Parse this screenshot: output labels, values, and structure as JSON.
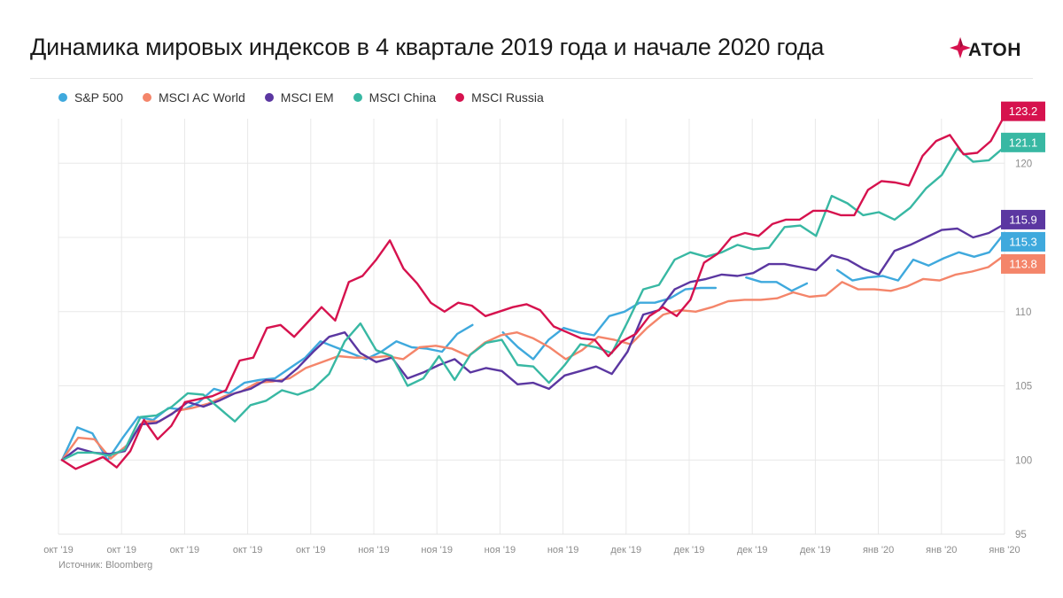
{
  "header": {
    "title": "Динамика мировых индексов в 4 квартале 2019 года и начале 2020 года",
    "logo_text": "АТОН"
  },
  "footer": {
    "source": "Источник: Bloomberg"
  },
  "colors": {
    "sp500": "#3fa9dd",
    "acwi": "#f4856a",
    "em": "#5b37a1",
    "china": "#38b8a3",
    "russia": "#d6124e",
    "logo_red": "#d6124e"
  },
  "chart_data": {
    "type": "line",
    "title": "Динамика мировых индексов в 4 квартале 2019 года и начале 2020 года",
    "xlabel": "",
    "ylabel": "",
    "ylim": [
      95,
      123
    ],
    "yticks": [
      95,
      100,
      105,
      110,
      115,
      120
    ],
    "grid": true,
    "legend_position": "top-left",
    "x_tick_labels": [
      "окт '19",
      "окт '19",
      "окт '19",
      "окт '19",
      "окт '19",
      "ноя '19",
      "ноя '19",
      "ноя '19",
      "ноя '19",
      "дек '19",
      "дек '19",
      "дек '19",
      "дек '19",
      "янв '20",
      "янв '20",
      "янв '20"
    ],
    "series": [
      {
        "name": "S&P 500",
        "color_key": "sp500",
        "end_label": "115.3",
        "values": [
          100.0,
          102.2,
          101.8,
          100.0,
          101.5,
          102.9,
          102.7,
          103.5,
          103.4,
          103.9,
          104.8,
          104.5,
          105.2,
          105.4,
          105.5,
          106.2,
          106.9,
          108.0,
          107.6,
          107.2,
          106.8,
          107.3,
          108.0,
          107.6,
          107.5,
          107.3,
          108.5,
          109.1,
          null,
          108.6,
          107.6,
          106.8,
          108.1,
          108.9,
          108.6,
          108.4,
          109.7,
          110.0,
          110.6,
          110.6,
          110.9,
          111.5,
          111.6,
          111.6,
          null,
          112.3,
          112.0,
          112.0,
          111.4,
          111.9,
          null,
          112.8,
          112.1,
          112.3,
          112.4,
          112.1,
          113.5,
          113.1,
          113.6,
          114.0,
          113.7,
          114.0,
          115.3
        ]
      },
      {
        "name": "MSCI AC World",
        "color_key": "acwi",
        "end_label": "113.8",
        "values": [
          100.0,
          101.5,
          101.4,
          100.1,
          101.0,
          102.6,
          102.6,
          103.3,
          103.5,
          103.8,
          104.3,
          104.6,
          105.2,
          105.3,
          105.5,
          106.2,
          106.6,
          107.0,
          106.9,
          106.9,
          107.0,
          106.8,
          107.6,
          107.7,
          107.5,
          107.0,
          107.9,
          108.4,
          108.6,
          108.2,
          107.6,
          106.8,
          107.4,
          108.3,
          108.1,
          107.8,
          108.9,
          109.8,
          110.1,
          110.0,
          110.3,
          110.7,
          110.8,
          110.8,
          110.9,
          111.3,
          111.0,
          111.1,
          112.0,
          111.5,
          111.5,
          111.4,
          111.7,
          112.2,
          112.1,
          112.5,
          112.7,
          113.0,
          113.8
        ]
      },
      {
        "name": "MSCI EM",
        "color_key": "em",
        "end_label": "115.9",
        "values": [
          100.0,
          100.8,
          100.5,
          100.4,
          100.6,
          102.4,
          102.5,
          103.1,
          103.9,
          103.6,
          104.0,
          104.5,
          104.8,
          105.4,
          105.3,
          106.2,
          107.3,
          108.3,
          108.6,
          107.2,
          106.6,
          106.9,
          105.5,
          105.9,
          106.4,
          106.8,
          105.9,
          106.2,
          106.0,
          105.1,
          105.2,
          104.8,
          105.7,
          106.0,
          106.3,
          105.8,
          107.3,
          109.8,
          110.1,
          111.5,
          112.0,
          112.2,
          112.5,
          112.4,
          112.6,
          113.2,
          113.2,
          113.0,
          112.8,
          113.8,
          113.5,
          112.9,
          112.5,
          114.1,
          114.5,
          115.0,
          115.5,
          115.6,
          115.0,
          115.3,
          115.9
        ]
      },
      {
        "name": "MSCI China",
        "color_key": "china",
        "end_label": "121.1",
        "values": [
          100.0,
          100.5,
          100.5,
          100.3,
          100.7,
          102.9,
          103.0,
          103.6,
          104.5,
          104.4,
          103.5,
          102.6,
          103.7,
          104.0,
          104.7,
          104.4,
          104.8,
          105.8,
          108.0,
          109.2,
          107.4,
          107.0,
          105.0,
          105.5,
          107.0,
          105.4,
          107.1,
          107.9,
          108.1,
          106.4,
          106.3,
          105.2,
          106.4,
          107.8,
          107.6,
          107.2,
          109.3,
          111.5,
          111.8,
          113.5,
          114.0,
          113.7,
          114.0,
          114.5,
          114.2,
          114.3,
          115.7,
          115.8,
          115.1,
          117.8,
          117.3,
          116.5,
          116.7,
          116.2,
          117.0,
          118.3,
          119.2,
          121.0,
          120.1,
          120.2,
          121.1
        ]
      },
      {
        "name": "MSCI Russia",
        "color_key": "russia",
        "end_label": "123.2",
        "values": [
          100.0,
          99.4,
          99.8,
          100.2,
          99.5,
          100.6,
          102.7,
          101.4,
          102.3,
          103.9,
          104.1,
          104.3,
          104.7,
          106.7,
          106.9,
          108.9,
          109.1,
          108.3,
          109.3,
          110.3,
          109.4,
          112.0,
          112.4,
          113.5,
          114.8,
          112.9,
          111.9,
          110.6,
          110.0,
          110.6,
          110.4,
          109.7,
          110.0,
          110.3,
          110.5,
          110.1,
          109.0,
          108.6,
          108.2,
          108.1,
          107.0,
          108.0,
          108.5,
          109.7,
          110.3,
          109.7,
          110.8,
          113.3,
          113.9,
          115.0,
          115.3,
          115.1,
          115.9,
          116.2,
          116.2,
          116.8,
          116.8,
          116.5,
          116.5,
          118.2,
          118.8,
          118.7,
          118.5,
          120.5,
          121.5,
          121.9,
          120.6,
          120.7,
          121.5,
          123.2
        ]
      }
    ]
  }
}
